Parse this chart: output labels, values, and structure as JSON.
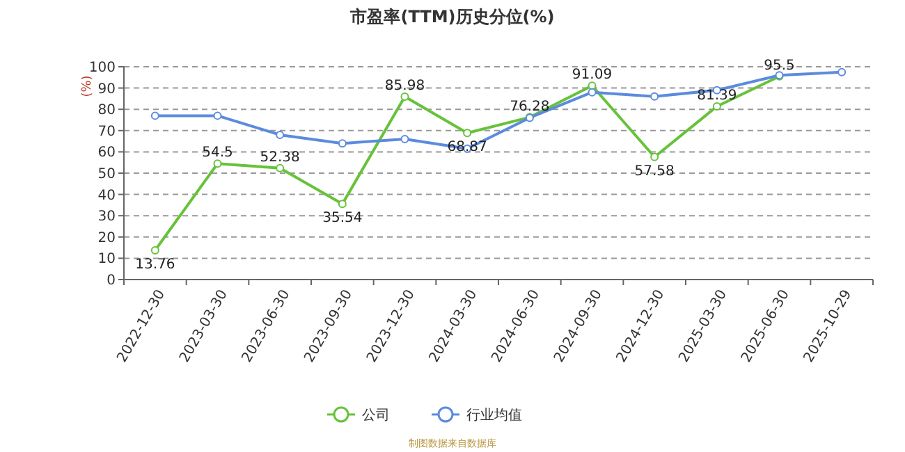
{
  "chart_data": {
    "type": "line",
    "title": "市盈率(TTM)历史分位(%)",
    "ylabel": "(%)",
    "categories": [
      "2022-12-30",
      "2023-03-30",
      "2023-06-30",
      "2023-09-30",
      "2023-12-30",
      "2024-03-30",
      "2024-06-30",
      "2024-09-30",
      "2024-12-30",
      "2025-03-30",
      "2025-06-30",
      "2025-10-29"
    ],
    "series": [
      {
        "name": "公司",
        "color": "#67c23a",
        "values": [
          13.76,
          54.5,
          52.38,
          35.54,
          85.98,
          68.87,
          76.28,
          91.09,
          57.58,
          81.39,
          95.5,
          null
        ],
        "value_labels": [
          "13.76",
          "54.5",
          "52.38",
          "35.54",
          "85.98",
          "68.87",
          "76.28",
          "91.09",
          "57.58",
          "81.39",
          "95.5",
          null
        ]
      },
      {
        "name": "行业均值",
        "color": "#5b8bde",
        "values": [
          77,
          77,
          68,
          64,
          66,
          61.5,
          76,
          88,
          86,
          89,
          96,
          97.5
        ]
      }
    ],
    "ylim": [
      0,
      100
    ],
    "yticks": [
      0,
      10,
      20,
      30,
      40,
      50,
      60,
      70,
      80,
      90,
      100
    ],
    "grid": "y",
    "legend": "bottom",
    "marker": "circle",
    "line_style": "solid",
    "annotations": [
      "制图数据来自数据库"
    ]
  }
}
